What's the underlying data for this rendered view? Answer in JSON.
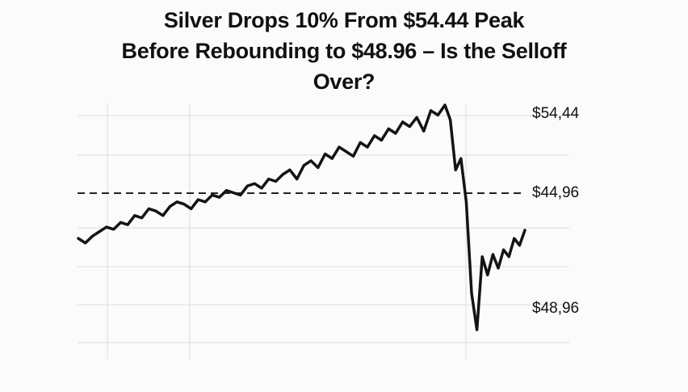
{
  "title_lines": [
    "Silver Drops 10% From $54.44 Peak",
    "Before Rebounding to $48.96 – Is the Selloff",
    "Over?"
  ],
  "colors": {
    "line": "#141414",
    "grid": "#dddddd",
    "reference": "#222222",
    "background": "#fbfbfb"
  },
  "chart_data": {
    "type": "line",
    "title": "Silver Drops 10% From $54.44 Peak Before Rebounding to $48.96 – Is the Selloff Over?",
    "y_tick_labels": [
      "$54,44",
      "$44,96",
      "$48,96"
    ],
    "reference_line": {
      "label": "$44,96",
      "style": "dashed"
    },
    "grid": true,
    "legend": "none",
    "series": [
      {
        "values": [
          48.6,
          48.4,
          48.7,
          48.9,
          49.1,
          49.0,
          49.3,
          49.2,
          49.6,
          49.5,
          49.9,
          49.8,
          49.6,
          50.0,
          50.2,
          50.1,
          49.9,
          50.3,
          50.2,
          50.5,
          50.4,
          50.7,
          50.6,
          50.5,
          50.9,
          51.0,
          50.8,
          51.2,
          51.1,
          51.4,
          51.6,
          51.2,
          51.8,
          52.0,
          51.7,
          52.3,
          52.1,
          52.6,
          52.4,
          52.2,
          52.8,
          52.6,
          53.1,
          52.9,
          53.4,
          53.2,
          53.7,
          53.5,
          53.9,
          53.3,
          54.2,
          54.0,
          54.44,
          53.8,
          51.6,
          52.1,
          50.2,
          46.2,
          44.6,
          47.8,
          47.0,
          47.9,
          47.3,
          48.1,
          47.8,
          48.6,
          48.3,
          48.96
        ],
        "note": ""
      }
    ]
  }
}
